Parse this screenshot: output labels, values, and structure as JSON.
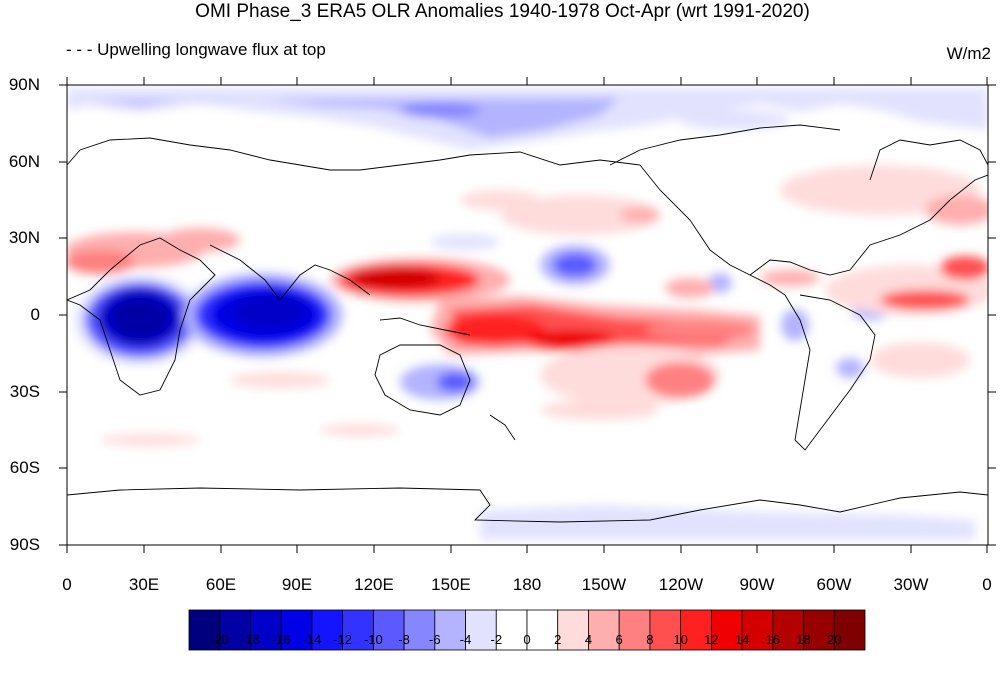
{
  "title": "OMI Phase_3 ERA5 OLR Anomalies 1940-1978 Oct-Apr (wrt 1991-2020)",
  "subtitle": "- - - Upwelling longwave flux at top",
  "units": "W/m2",
  "map": {
    "projection": "cylindrical-equidistant",
    "lon_range": [
      0,
      360
    ],
    "lat_range": [
      -90,
      90
    ],
    "lat_labels": [
      "90N",
      "60N",
      "30N",
      "0",
      "30S",
      "60S",
      "90S"
    ],
    "lon_labels": [
      "0",
      "30E",
      "60E",
      "90E",
      "120E",
      "150E",
      "180",
      "150W",
      "120W",
      "90W",
      "60W",
      "30W",
      "0"
    ]
  },
  "colorbar": {
    "labels": [
      "-20",
      "-18",
      "-16",
      "-14",
      "-12",
      "-10",
      "-8",
      "-6",
      "-4",
      "-2",
      "0",
      "2",
      "4",
      "6",
      "8",
      "10",
      "12",
      "14",
      "16",
      "18",
      "20"
    ],
    "colors": [
      "#00007f",
      "#0000a5",
      "#0000c8",
      "#0000e6",
      "#1414ff",
      "#3333ff",
      "#5a5aff",
      "#8686ff",
      "#b3b3ff",
      "#e2e2ff",
      "#ffffff",
      "#ffffff",
      "#ffdcdc",
      "#ffaeae",
      "#ff8080",
      "#ff5050",
      "#ff2020",
      "#f00000",
      "#d40000",
      "#b30000",
      "#960000",
      "#7f0000"
    ]
  }
}
